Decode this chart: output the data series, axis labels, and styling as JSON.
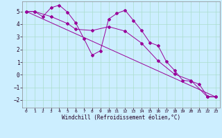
{
  "xlabel": "Windchill (Refroidissement éolien,°C)",
  "bg_color": "#cceeff",
  "line_color": "#990099",
  "grid_color": "#aaddcc",
  "xlim": [
    -0.5,
    23.5
  ],
  "ylim": [
    -2.6,
    5.8
  ],
  "yticks": [
    -2,
    -1,
    0,
    1,
    2,
    3,
    4,
    5
  ],
  "xticks": [
    0,
    1,
    2,
    3,
    4,
    5,
    6,
    7,
    8,
    9,
    10,
    11,
    12,
    13,
    14,
    15,
    16,
    17,
    18,
    19,
    20,
    21,
    22,
    23
  ],
  "line1_x": [
    0,
    1,
    2,
    3,
    4,
    5,
    6,
    7,
    8,
    9,
    10,
    11,
    12,
    13,
    14,
    15,
    16,
    17,
    18,
    19,
    20,
    21,
    22,
    23
  ],
  "line1_y": [
    5.0,
    5.0,
    4.6,
    5.3,
    5.5,
    4.95,
    4.1,
    2.85,
    1.55,
    1.9,
    4.4,
    4.85,
    5.1,
    4.3,
    3.5,
    2.55,
    2.3,
    1.05,
    0.35,
    -0.45,
    -0.5,
    -0.75,
    -1.7,
    -1.75
  ],
  "line2_x": [
    0,
    1,
    3,
    5,
    6,
    8,
    10,
    12,
    14,
    16,
    18,
    20,
    22,
    23
  ],
  "line2_y": [
    5.0,
    5.0,
    4.6,
    4.05,
    3.6,
    3.5,
    3.8,
    3.45,
    2.5,
    1.1,
    0.05,
    -0.45,
    -1.75,
    -1.75
  ],
  "line3_x": [
    0,
    23
  ],
  "line3_y": [
    5.0,
    -1.75
  ]
}
